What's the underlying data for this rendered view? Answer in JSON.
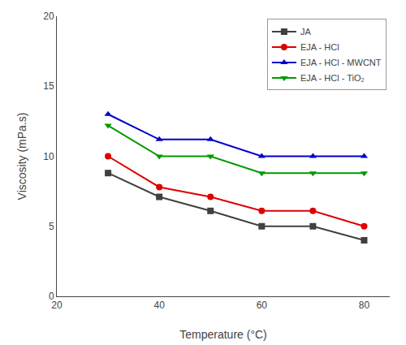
{
  "chart_data": {
    "type": "line",
    "x_label": "Temperature (°C)",
    "y_label": "Viscosity (mPa.s)",
    "x": [
      30,
      40,
      50,
      60,
      70,
      80
    ],
    "series": [
      {
        "name": "JA",
        "color": "#404040",
        "marker": "square",
        "values": [
          8.8,
          7.1,
          6.1,
          5.0,
          5.0,
          4.0
        ]
      },
      {
        "name": "EJA - HCl",
        "color": "#dd0000",
        "marker": "circle",
        "values": [
          10.0,
          7.8,
          7.1,
          6.1,
          6.1,
          5.0
        ]
      },
      {
        "name": "EJA - HCl - MWCNT",
        "color": "#0000cc",
        "marker": "triangle-up",
        "values": [
          13.0,
          11.2,
          11.2,
          10.0,
          10.0,
          10.0
        ]
      },
      {
        "name": "EJA - HCl - TiO₂",
        "color": "#009900",
        "marker": "triangle-down",
        "values": [
          12.2,
          10.0,
          10.0,
          8.8,
          8.8,
          8.8
        ]
      }
    ],
    "xlim": [
      20,
      85
    ],
    "ylim": [
      0,
      20
    ],
    "xticks": [
      20,
      40,
      60,
      80
    ],
    "yticks": [
      0,
      5,
      10,
      15,
      20
    ],
    "grid": false,
    "legend": "upper right"
  }
}
